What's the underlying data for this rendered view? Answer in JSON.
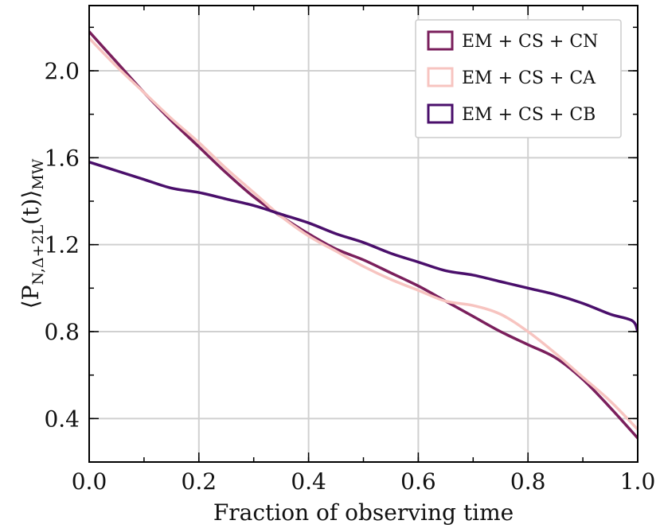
{
  "chart_data": {
    "type": "line",
    "xlabel": "Fraction of observing time",
    "ylabel_main": "⟨P",
    "ylabel_sub": "N,Δ+2L",
    "ylabel_arg": "(t)⟩",
    "ylabel_suffix": "MW",
    "xlim": [
      0.0,
      1.0
    ],
    "ylim": [
      0.2,
      2.3
    ],
    "xticks": [
      "0.0",
      "0.2",
      "0.4",
      "0.6",
      "0.8",
      "1.0"
    ],
    "yticks": [
      "0.4",
      "0.8",
      "1.2",
      "1.6",
      "2.0"
    ],
    "grid": true,
    "legend_position": "top-right",
    "series": [
      {
        "name": "EM + CS + CN",
        "color": "#7a1f5c",
        "x": [
          0.0,
          0.05,
          0.1,
          0.15,
          0.2,
          0.25,
          0.3,
          0.35,
          0.4,
          0.45,
          0.5,
          0.55,
          0.6,
          0.65,
          0.7,
          0.75,
          0.8,
          0.85,
          0.9,
          0.95,
          1.0
        ],
        "y": [
          2.18,
          2.04,
          1.9,
          1.77,
          1.65,
          1.53,
          1.42,
          1.33,
          1.25,
          1.18,
          1.13,
          1.07,
          1.01,
          0.94,
          0.87,
          0.8,
          0.74,
          0.68,
          0.58,
          0.45,
          0.31
        ]
      },
      {
        "name": "EM + CS + CA",
        "color": "#f7c4c0",
        "x": [
          0.0,
          0.05,
          0.1,
          0.15,
          0.2,
          0.25,
          0.3,
          0.35,
          0.4,
          0.45,
          0.5,
          0.55,
          0.6,
          0.65,
          0.7,
          0.75,
          0.8,
          0.85,
          0.9,
          0.95,
          1.0
        ],
        "y": [
          2.15,
          2.02,
          1.9,
          1.78,
          1.67,
          1.55,
          1.44,
          1.33,
          1.24,
          1.17,
          1.1,
          1.04,
          0.99,
          0.94,
          0.92,
          0.88,
          0.8,
          0.7,
          0.59,
          0.48,
          0.35
        ]
      },
      {
        "name": "EM + CS + CB",
        "color": "#4a0f6b",
        "x": [
          0.0,
          0.05,
          0.1,
          0.15,
          0.2,
          0.25,
          0.3,
          0.35,
          0.4,
          0.45,
          0.5,
          0.55,
          0.6,
          0.65,
          0.7,
          0.75,
          0.8,
          0.85,
          0.9,
          0.95,
          0.99,
          1.0
        ],
        "y": [
          1.58,
          1.54,
          1.5,
          1.46,
          1.44,
          1.41,
          1.38,
          1.34,
          1.3,
          1.25,
          1.21,
          1.16,
          1.12,
          1.08,
          1.06,
          1.03,
          1.0,
          0.97,
          0.93,
          0.88,
          0.85,
          0.8
        ]
      }
    ]
  }
}
